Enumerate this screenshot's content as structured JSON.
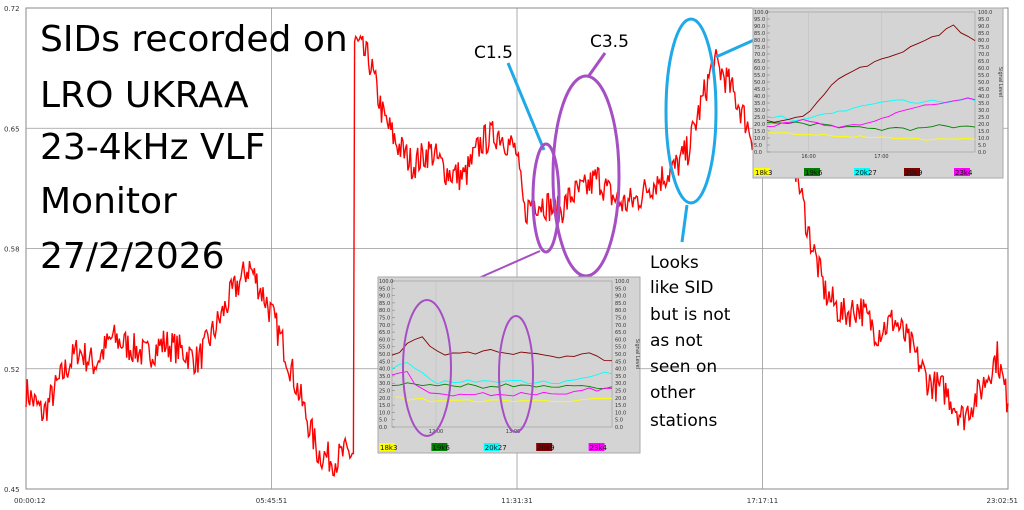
{
  "chart_data": {
    "type": "line",
    "title_lines": [
      "SIDs recorded on",
      "LRO UKRAA",
      "23-4kHz VLF",
      "Monitor",
      "27/2/2026"
    ],
    "x_tick_labels": [
      "00:00:12",
      "05:45:51",
      "11:31:31",
      "17:17:11",
      "23:02:51"
    ],
    "y_tick_labels": [
      "0.72",
      "0.65",
      "0.58",
      "0.52",
      "0.45"
    ],
    "ylim": [
      0.45,
      0.72
    ],
    "grid": true,
    "line_color": "#ff0000",
    "series": [
      {
        "x": [
          0.2,
          0.6,
          1.0,
          1.4,
          1.8,
          2.2,
          2.6,
          3.0,
          3.4,
          3.8,
          4.2,
          4.6,
          5.0,
          5.4,
          5.8,
          6.2,
          6.6,
          7.0,
          7.4,
          7.6,
          7.9,
          8.2,
          8.5,
          8.8,
          9.2,
          9.6,
          10.0,
          10.4,
          10.8,
          11.2,
          11.6,
          11.8,
          12.0,
          12.3,
          12.6,
          12.9,
          13.2,
          13.5,
          13.8,
          14.1,
          14.4,
          14.7,
          15.0,
          15.3,
          15.6,
          15.9,
          16.2,
          16.5,
          16.8,
          17.1,
          17.4,
          17.7,
          18.0,
          18.4,
          18.8,
          19.2,
          19.6,
          20.0,
          20.4,
          20.8,
          21.2,
          21.6,
          22.0,
          22.4,
          22.8,
          23.05
        ],
        "y": [
          0.505,
          0.492,
          0.512,
          0.528,
          0.52,
          0.535,
          0.53,
          0.525,
          0.532,
          0.528,
          0.522,
          0.54,
          0.56,
          0.575,
          0.555,
          0.53,
          0.5,
          0.47,
          0.466,
          0.47,
          0.7,
          0.69,
          0.66,
          0.645,
          0.632,
          0.64,
          0.628,
          0.625,
          0.645,
          0.65,
          0.64,
          0.605,
          0.612,
          0.61,
          0.605,
          0.615,
          0.618,
          0.625,
          0.615,
          0.61,
          0.612,
          0.62,
          0.625,
          0.63,
          0.64,
          0.665,
          0.69,
          0.68,
          0.665,
          0.648,
          0.665,
          0.67,
          0.645,
          0.595,
          0.56,
          0.548,
          0.552,
          0.538,
          0.545,
          0.53,
          0.51,
          0.505,
          0.49,
          0.505,
          0.525,
          0.498
        ]
      }
    ],
    "annotations": {
      "c15": "C1.5",
      "c35": "C3.5",
      "looks_lines": [
        "Looks",
        "like SID",
        "but is not",
        "as not",
        "seen on",
        "other",
        "stations"
      ]
    },
    "insets": [
      {
        "legend": [
          "18k3",
          "19k6",
          "20k27",
          "20k9",
          "23k4"
        ],
        "legend_colors": [
          "#ffff00",
          "#008000",
          "#00ffff",
          "#800000",
          "#ff00ff"
        ],
        "x_tick_labels": [
          "16:00",
          "17:00"
        ],
        "y_left_ticks": [
          "100.0",
          "95.0",
          "90.0",
          "85.0",
          "80.0",
          "75.0",
          "70.0",
          "65.0",
          "60.0",
          "55.0",
          "50.0",
          "45.0",
          "40.0",
          "35.0",
          "30.0",
          "25.0",
          "20.0",
          "15.0",
          "10.0",
          "5.0",
          "0.0"
        ],
        "y_right_ticks": [
          "100.0",
          "95.0",
          "90.0",
          "85.0",
          "80.0",
          "75.0",
          "70.0",
          "65.0",
          "60.0",
          "55.0",
          "50.0",
          "45.0",
          "40.0",
          "35.0",
          "30.0",
          "25.0",
          "20.0",
          "15.0",
          "10.0",
          "5.0",
          "0.0"
        ],
        "right_axis_label": "Signal Level",
        "series_values": {
          "20k9": [
            22,
            22,
            23,
            23,
            24,
            26,
            30,
            36,
            42,
            48,
            52,
            55,
            58,
            60,
            62,
            64,
            66,
            68,
            70,
            72,
            75,
            78,
            80,
            82,
            84,
            88,
            90,
            86,
            82,
            80
          ],
          "20k27": [
            24,
            25,
            26,
            24,
            23,
            24,
            25,
            26,
            27,
            28,
            30,
            30,
            31,
            32,
            33,
            34,
            35,
            36,
            37,
            37,
            36,
            35,
            36,
            37,
            36,
            35,
            36,
            37,
            38,
            37
          ],
          "19k6": [
            22,
            21,
            20,
            20,
            21,
            20,
            19,
            20,
            20,
            19,
            18,
            18,
            19,
            18,
            17,
            17,
            16,
            17,
            18,
            17,
            16,
            18,
            17,
            18,
            19,
            18,
            17,
            18,
            18,
            18
          ],
          "23k4": [
            18,
            19,
            20,
            21,
            22,
            23,
            22,
            21,
            19,
            18,
            17,
            18,
            19,
            20,
            21,
            22,
            24,
            26,
            28,
            30,
            31,
            32,
            33,
            34,
            35,
            36,
            37,
            38,
            38,
            37
          ],
          "18k3": [
            15,
            14,
            14,
            14,
            13,
            13,
            13,
            12,
            12,
            12,
            11,
            11,
            11,
            11,
            10,
            10,
            10,
            10,
            10,
            10,
            10,
            10,
            9,
            9,
            9,
            9,
            9,
            9,
            9,
            9
          ]
        }
      },
      {
        "legend": [
          "18k3",
          "19k6",
          "20k27",
          "20k9",
          "23k4"
        ],
        "legend_colors": [
          "#ffff00",
          "#008000",
          "#00ffff",
          "#800000",
          "#ff00ff"
        ],
        "x_tick_labels": [
          "12:00",
          "13:00"
        ],
        "y_left_ticks": [
          "100.0",
          "95.0",
          "90.0",
          "85.0",
          "80.0",
          "75.0",
          "70.0",
          "65.0",
          "60.0",
          "55.0",
          "50.0",
          "45.0",
          "40.0",
          "35.0",
          "30.0",
          "25.0",
          "20.0",
          "15.0",
          "10.0",
          "5.0",
          "0.0"
        ],
        "y_right_ticks": [
          "100.0",
          "95.0",
          "90.0",
          "85.0",
          "80.0",
          "75.0",
          "70.0",
          "65.0",
          "60.0",
          "55.0",
          "50.0",
          "45.0",
          "40.0",
          "35.0",
          "30.0",
          "25.0",
          "20.0",
          "15.0",
          "10.0",
          "5.0",
          "0.0"
        ],
        "right_axis_label": "Signal Level",
        "series_values": {
          "20k9": [
            50,
            51,
            58,
            60,
            62,
            55,
            52,
            50,
            50,
            50,
            51,
            50,
            52,
            53,
            51,
            50,
            50,
            51,
            50,
            50,
            49,
            48,
            47,
            48,
            49,
            50,
            51,
            48,
            46,
            45
          ],
          "20k27": [
            40,
            42,
            44,
            40,
            38,
            33,
            30,
            31,
            31,
            31,
            32,
            31,
            31,
            32,
            31,
            31,
            32,
            31,
            30,
            31,
            31,
            30,
            30,
            31,
            32,
            33,
            34,
            36,
            37,
            36
          ],
          "19k6": [
            28,
            29,
            30,
            29,
            28,
            29,
            28,
            29,
            28,
            28,
            29,
            28,
            27,
            28,
            28,
            29,
            28,
            29,
            28,
            27,
            28,
            28,
            27,
            28,
            29,
            28,
            28,
            27,
            27,
            28
          ],
          "23k4": [
            36,
            37,
            38,
            30,
            26,
            24,
            23,
            23,
            22,
            23,
            22,
            22,
            23,
            22,
            23,
            22,
            22,
            23,
            22,
            22,
            23,
            22,
            22,
            23,
            24,
            25,
            26,
            25,
            26,
            27
          ],
          "18k3": [
            20,
            20,
            19,
            19,
            19,
            18,
            18,
            18,
            18,
            18,
            18,
            18,
            18,
            18,
            18,
            18,
            18,
            18,
            18,
            18,
            18,
            18,
            18,
            18,
            18,
            18,
            19,
            19,
            19,
            19
          ]
        }
      }
    ],
    "colors": {
      "annotation_blue": "#1fa9e8",
      "annotation_purple": "#a64fc4",
      "inset_bg": "#d4d4d4"
    }
  }
}
